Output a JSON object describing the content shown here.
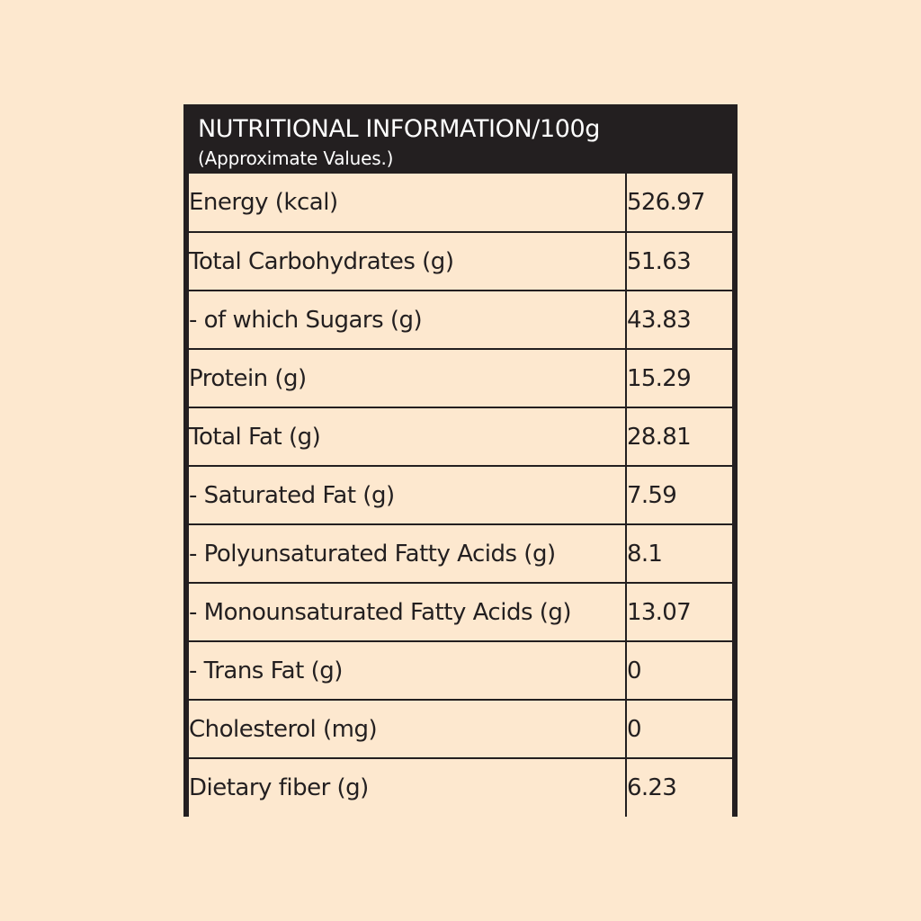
{
  "header": {
    "title": "NUTRITIONAL INFORMATION/100g",
    "subtitle": "(Approximate Values.)"
  },
  "rows": [
    {
      "label": "Energy (kcal)",
      "value": "526.97"
    },
    {
      "label": "Total Carbohydrates (g)",
      "value": "51.63"
    },
    {
      "label": "- of which Sugars (g)",
      "value": "43.83"
    },
    {
      "label": "Protein (g)",
      "value": "15.29"
    },
    {
      "label": "Total Fat (g)",
      "value": "28.81"
    },
    {
      "label": "- Saturated Fat (g)",
      "value": "7.59"
    },
    {
      "label": "- Polyunsaturated Fatty Acids (g)",
      "value": "8.1"
    },
    {
      "label": "- Monounsaturated Fatty Acids (g)",
      "value": "13.07"
    },
    {
      "label": "- Trans Fat (g)",
      "value": "0"
    },
    {
      "label": "Cholesterol (mg)",
      "value": "0"
    },
    {
      "label": "Dietary fiber (g)",
      "value": "6.23"
    }
  ],
  "colors": {
    "background": "#fde8cf",
    "header_bg": "#231f20",
    "header_text": "#ffffff",
    "text": "#231f20"
  }
}
